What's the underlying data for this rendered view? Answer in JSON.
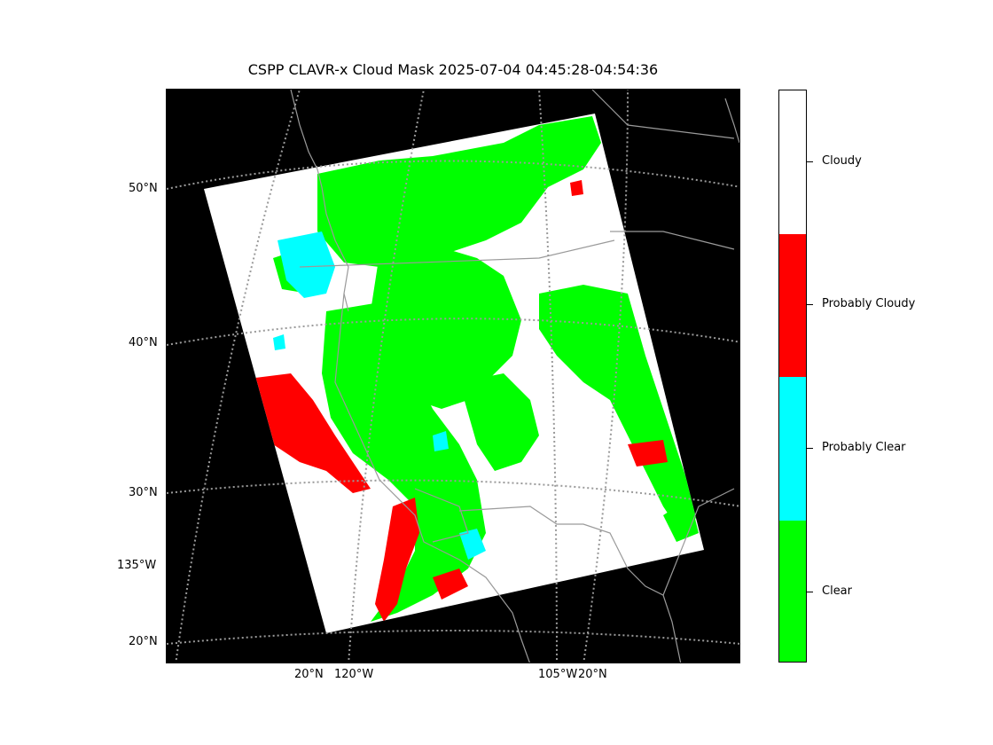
{
  "title": "CSPP CLAVR-x Cloud Mask 2025-07-04 04:45:28-04:54:36",
  "lat_labels": [
    "50°N",
    "40°N",
    "30°N",
    "135°W",
    "20°N"
  ],
  "bottom_labels": [
    "20°N",
    "120°W",
    "105°W",
    "20°N"
  ],
  "legend": {
    "categories": [
      "Clear",
      "Probably Clear",
      "Probably Cloudy",
      "Cloudy"
    ],
    "colors": [
      "#00ff00",
      "#00ffff",
      "#ff0000",
      "#ffffff"
    ]
  },
  "colors": {
    "background": "#000000",
    "gridlines": "#9a9a9a",
    "coastlines": "#9a9a9a"
  }
}
